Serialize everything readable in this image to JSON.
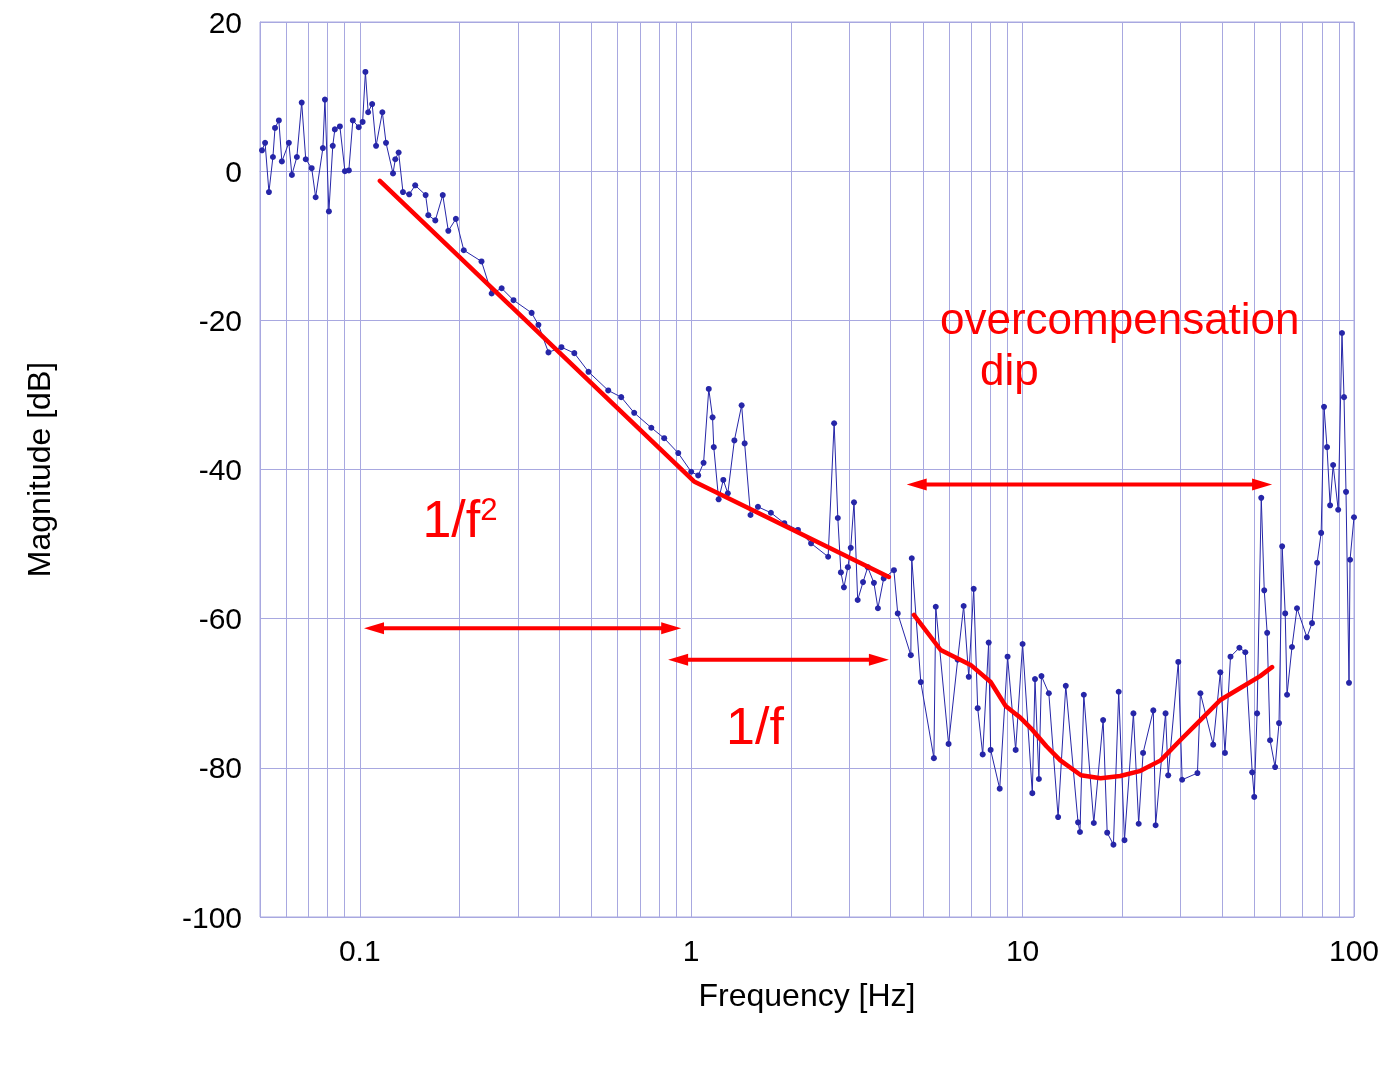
{
  "chart_data": {
    "type": "line",
    "xlabel": "Frequency [Hz]",
    "ylabel": "Magnitude [dB]",
    "log": "x",
    "xlim": [
      0.05,
      100
    ],
    "xticks": [
      0.1,
      1,
      10,
      100
    ],
    "ylim": [
      -100,
      20
    ],
    "yticks": [
      -100,
      -80,
      -60,
      -40,
      -20,
      0,
      20
    ],
    "grid": true,
    "line_style": "solid",
    "annotations": [
      "1/f$^{2}$",
      "1/f",
      "overcompensation\ndip"
    ],
    "series": [
      {
        "color": "#2626a8",
        "marker": "circle",
        "x": [
          0.0507,
          0.0518,
          0.0532,
          0.0547,
          0.0555,
          0.057,
          0.0582,
          0.0611,
          0.0624,
          0.0646,
          0.0668,
          0.0687,
          0.0716,
          0.0736,
          0.0774,
          0.0785,
          0.0807,
          0.0829,
          0.0841,
          0.0871,
          0.0902,
          0.0927,
          0.0953,
          0.0993,
          0.102,
          0.104,
          0.106,
          0.109,
          0.112,
          0.117,
          0.12,
          0.126,
          0.128,
          0.131,
          0.135,
          0.141,
          0.147,
          0.158,
          0.161,
          0.169,
          0.178,
          0.185,
          0.195,
          0.206,
          0.233,
          0.25,
          0.268,
          0.291,
          0.33,
          0.346,
          0.371,
          0.406,
          0.444,
          0.49,
          0.562,
          0.615,
          0.673,
          0.758,
          0.829,
          0.914,
          1.0,
          1.05,
          1.09,
          1.13,
          1.16,
          1.17,
          1.21,
          1.25,
          1.29,
          1.35,
          1.42,
          1.45,
          1.51,
          1.59,
          1.74,
          1.91,
          2.1,
          2.3,
          2.59,
          2.7,
          2.77,
          2.83,
          2.89,
          2.97,
          3.03,
          3.1,
          3.18,
          3.3,
          3.41,
          3.56,
          3.66,
          3.81,
          4.09,
          4.2,
          4.6,
          4.63,
          4.93,
          5.4,
          5.47,
          5.98,
          6.37,
          6.64,
          6.88,
          7.12,
          7.32,
          7.58,
          7.9,
          8.01,
          8.53,
          9.01,
          9.53,
          10.0,
          10.7,
          10.9,
          11.2,
          11.4,
          12.0,
          12.8,
          13.5,
          14.7,
          14.9,
          15.3,
          16.4,
          17.5,
          18.0,
          18.8,
          19.5,
          20.3,
          21.6,
          22.4,
          23.1,
          24.8,
          25.2,
          27.0,
          27.5,
          29.5,
          30.3,
          33.7,
          34.4,
          37.6,
          39.5,
          40.8,
          42.4,
          45.1,
          47.0,
          49.3,
          50.0,
          51.0,
          52.5,
          53.6,
          54.7,
          55.8,
          57.8,
          59.4,
          60.7,
          62.0,
          62.8,
          65.0,
          67.3,
          72.1,
          74.7,
          77.4,
          79.6,
          81.2,
          82.9,
          84.7,
          86.5,
          89.6,
          92.0,
          93.3,
          94.6,
          96.6,
          97.3,
          100
        ],
        "values": [
          2.8,
          3.8,
          -2.8,
          1.9,
          5.8,
          6.8,
          1.3,
          3.8,
          -0.5,
          1.9,
          9.2,
          1.6,
          0.4,
          -3.5,
          3.1,
          9.6,
          -5.4,
          3.4,
          5.6,
          6.0,
          0,
          0.1,
          6.8,
          5.9,
          6.6,
          13.3,
          7.9,
          9.0,
          3.4,
          7.9,
          3.8,
          -0.3,
          1.6,
          2.5,
          -2.8,
          -3.1,
          -1.9,
          -3.2,
          -5.9,
          -6.6,
          -3.2,
          -8.0,
          -6.4,
          -10.6,
          -12.1,
          -16.4,
          -15.7,
          -17.3,
          -19.0,
          -20.6,
          -24.3,
          -23.6,
          -24.4,
          -26.9,
          -29.4,
          -30.3,
          -32.4,
          -34.4,
          -35.8,
          -37.8,
          -40.3,
          -40.8,
          -39.1,
          -29.2,
          -33.0,
          -37.0,
          -44.0,
          -41.4,
          -43.2,
          -36.1,
          -31.4,
          -36.5,
          -46.1,
          -45.0,
          -45.8,
          -47.2,
          -48.1,
          -49.9,
          -51.7,
          -33.8,
          -46.5,
          -53.8,
          -55.8,
          -53.1,
          -50.5,
          -44.4,
          -57.5,
          -55.1,
          -53.1,
          -55.2,
          -58.6,
          -54.6,
          -53.5,
          -59.3,
          -64.9,
          -51.9,
          -68.5,
          -78.7,
          -58.4,
          -76.8,
          -65.5,
          -58.3,
          -67.8,
          -56.0,
          -72.0,
          -78.2,
          -63.2,
          -77.6,
          -82.8,
          -65.1,
          -77.6,
          -63.4,
          -83.4,
          -68.1,
          -81.5,
          -67.7,
          -70.0,
          -86.6,
          -69.0,
          -87.3,
          -88.6,
          -70.2,
          -87.4,
          -73.6,
          -88.7,
          -90.3,
          -69.8,
          -89.7,
          -72.7,
          -87.5,
          -78.0,
          -72.3,
          -87.7,
          -72.7,
          -81.0,
          -65.8,
          -81.6,
          -80.7,
          -70.0,
          -76.9,
          -67.2,
          -78.0,
          -65.1,
          -63.9,
          -64.5,
          -80.6,
          -83.9,
          -72.7,
          -43.8,
          -56.2,
          -61.9,
          -76.3,
          -79.9,
          -74.0,
          -50.3,
          -59.3,
          -70.2,
          -63.8,
          -58.6,
          -62.5,
          -60.6,
          -52.5,
          -48.5,
          -31.6,
          -37.0,
          -44.8,
          -39.4,
          -45.4,
          -21.7,
          -30.3,
          -43.0,
          -68.6,
          -52.1,
          -46.4
        ]
      },
      {
        "color": "#ff0000",
        "marker": "none",
        "x": [
          0.115,
          1.02,
          3.95
        ],
        "values": [
          -1.3,
          -41.6,
          -54.4
        ]
      },
      {
        "color": "#ff0000",
        "marker": "none",
        "x": [
          4.7,
          5.66,
          6.97,
          8.01,
          8.89,
          9.86,
          10.6,
          11.8,
          13.0,
          15.0,
          17.2,
          19.7,
          22.7,
          26.1,
          29.9,
          34.4,
          39.5,
          45.4,
          52.1,
          56.6
        ],
        "values": [
          -59.5,
          -64.2,
          -66.2,
          -68.5,
          -71.7,
          -73.3,
          -74.7,
          -77.1,
          -79.0,
          -81.0,
          -81.4,
          -81.1,
          -80.4,
          -79.0,
          -76.3,
          -73.6,
          -70.9,
          -69.3,
          -67.7,
          -66.5
        ]
      }
    ]
  }
}
